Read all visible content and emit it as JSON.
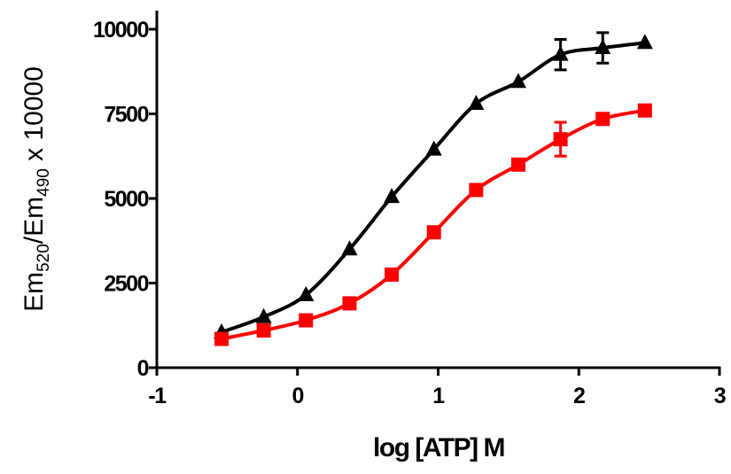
{
  "chart_data": {
    "type": "scatter",
    "x_label": "log [ATP] M",
    "y_label": [
      "Em",
      "520",
      "/Em",
      "490",
      " x 10000"
    ],
    "xlim": [
      -1,
      3
    ],
    "ylim": [
      0,
      10550
    ],
    "xticks": [
      -1,
      0,
      1,
      2,
      3
    ],
    "yticks": [
      0,
      2500,
      5000,
      7500,
      10000
    ],
    "series": [
      {
        "color": "#000000",
        "marker": "triangle",
        "x": [
          -0.54,
          -0.24,
          0.06,
          0.37,
          0.67,
          0.97,
          1.27,
          1.57,
          1.87,
          2.17,
          2.47
        ],
        "values": [
          1050,
          1500,
          2150,
          3500,
          5050,
          6450,
          7800,
          8450,
          9250,
          9450,
          9600
        ],
        "errors": [
          null,
          null,
          null,
          null,
          null,
          null,
          null,
          null,
          450,
          450,
          null
        ]
      },
      {
        "color": "#ff0000",
        "marker": "square",
        "x": [
          -0.54,
          -0.24,
          0.06,
          0.37,
          0.67,
          0.97,
          1.27,
          1.57,
          1.87,
          2.17,
          2.47
        ],
        "values": [
          850,
          1100,
          1400,
          1900,
          2750,
          4000,
          5250,
          6000,
          6750,
          7350,
          7600
        ],
        "errors": [
          null,
          null,
          null,
          null,
          null,
          null,
          null,
          null,
          500,
          null,
          150
        ]
      }
    ]
  }
}
